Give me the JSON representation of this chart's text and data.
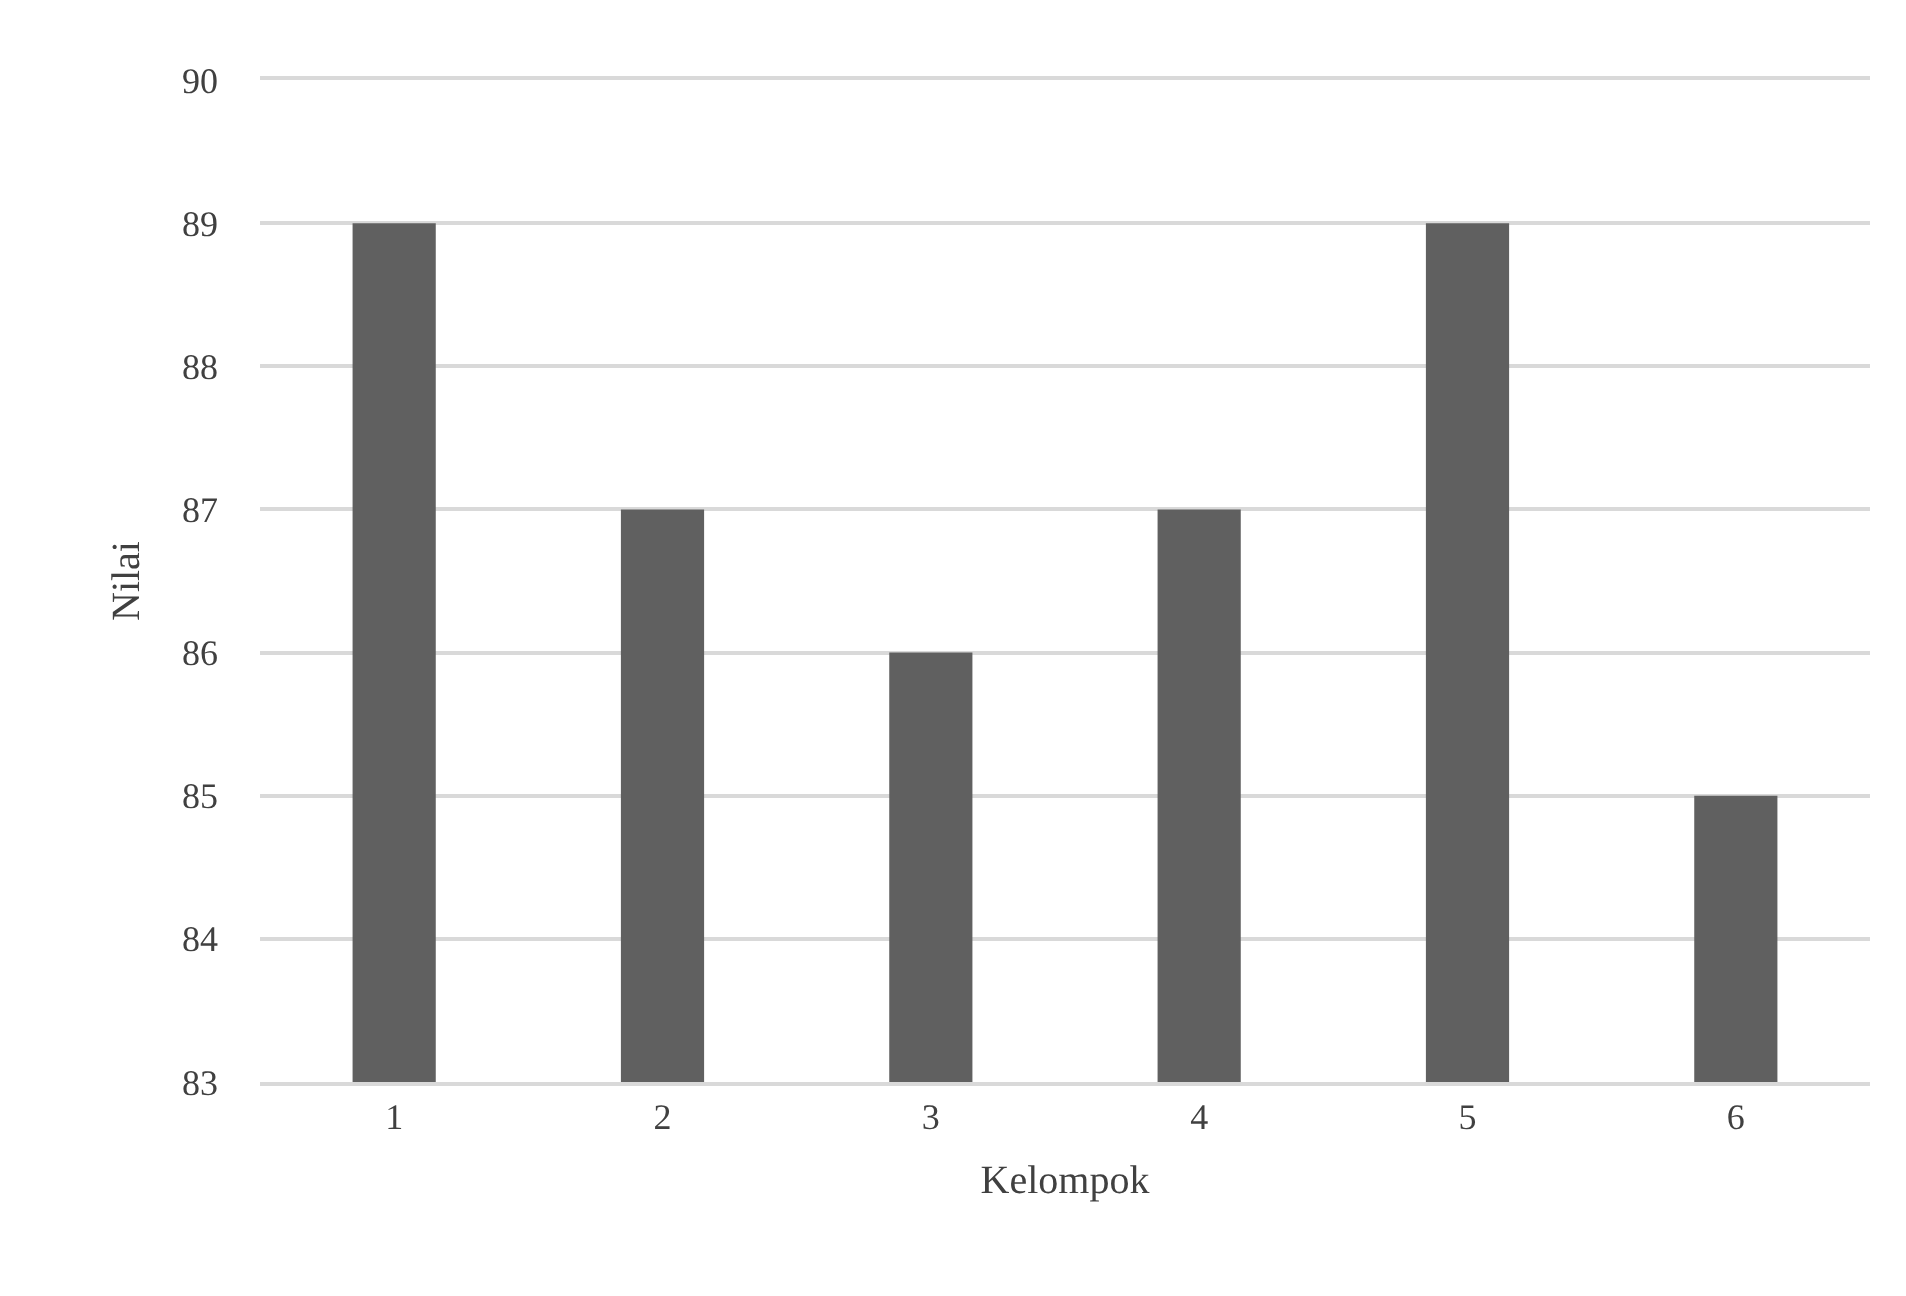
{
  "chart_data": {
    "type": "bar",
    "xlabel": "Kelompok",
    "ylabel": "Nilai",
    "categories": [
      "1",
      "2",
      "3",
      "4",
      "5",
      "6"
    ],
    "values": [
      89,
      87,
      86,
      87,
      89,
      85
    ],
    "color": "#606060",
    "ylim": [
      83,
      90
    ],
    "yticks": [
      83,
      84,
      85,
      86,
      87,
      88,
      89,
      90
    ],
    "grid": "y"
  }
}
